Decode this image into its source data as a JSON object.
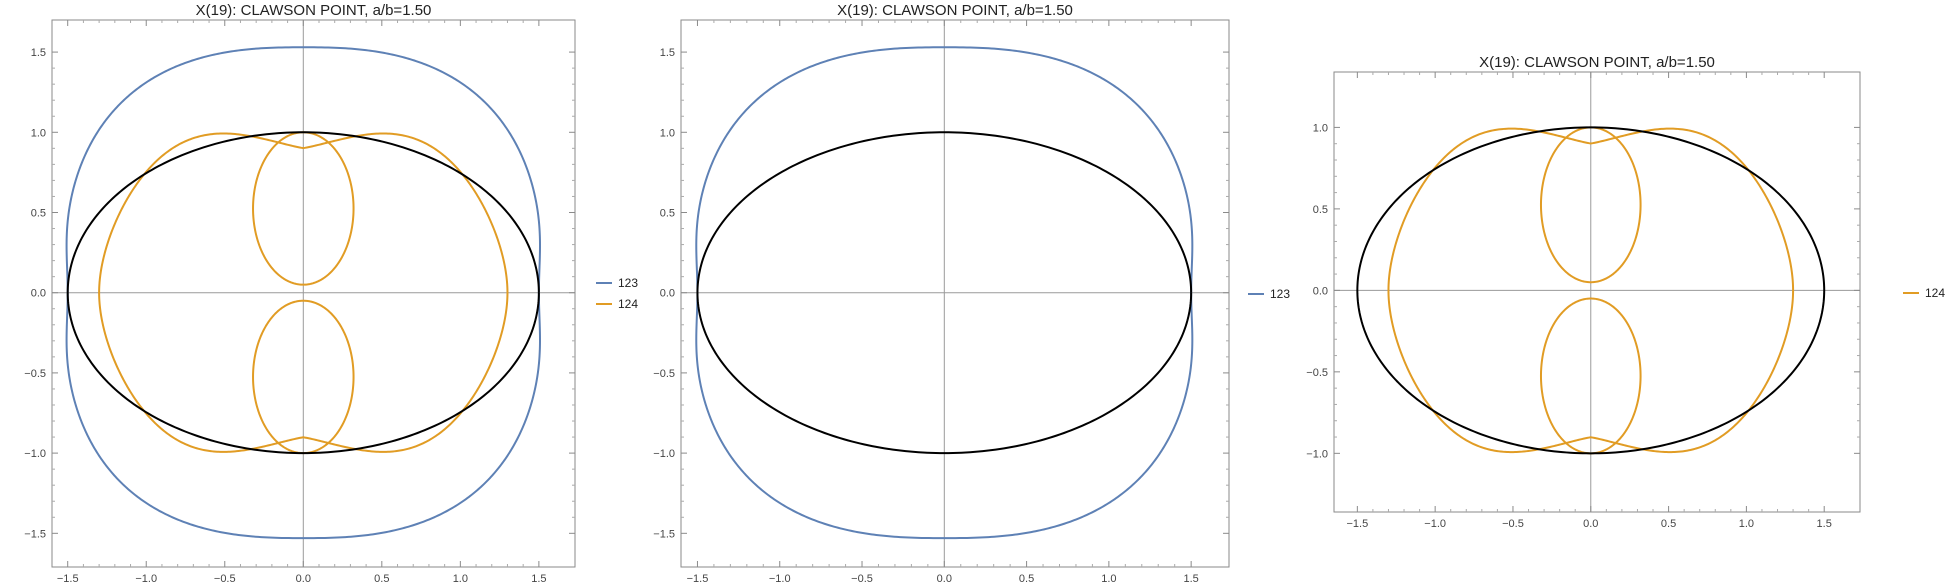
{
  "chart_data": [
    {
      "type": "line",
      "title": "X(19): CLAWSON POINT, a/b=1.50",
      "xlim": [
        -1.5,
        1.5
      ],
      "ylim": [
        -1.5,
        1.5
      ],
      "xticks": [
        "−1.5",
        "−1.0",
        "−0.5",
        "0.0",
        "0.5",
        "1.0",
        "1.5"
      ],
      "xtick_values": [
        -1.5,
        -1.0,
        -0.5,
        0.0,
        0.5,
        1.0,
        1.5
      ],
      "yticks": [
        "−1.5",
        "−1.0",
        "−0.5",
        "0.0",
        "0.5",
        "1.0",
        "1.5"
      ],
      "ytick_values": [
        -1.5,
        -1.0,
        -0.5,
        0.0,
        0.5,
        1.0,
        1.5
      ],
      "ellipse": {
        "a": 1.5,
        "b": 1.0,
        "color": "#000000"
      },
      "series": [
        {
          "name": "123",
          "color": "#5E81B5",
          "kind": "outer",
          "x_extent": 1.53,
          "y_extent": 1.53,
          "x_at_center": 1.5
        },
        {
          "name": "124",
          "color": "#E19C24",
          "kind": "inner",
          "x_extent": 1.3,
          "y_extent": 1.21,
          "lobe_y_range": [
            0.05,
            1.0
          ],
          "lobe_x_extent": 0.32
        }
      ],
      "legend_position": "right"
    },
    {
      "type": "line",
      "title": "X(19): CLAWSON POINT, a/b=1.50",
      "xlim": [
        -1.5,
        1.5
      ],
      "ylim": [
        -1.5,
        1.5
      ],
      "xticks": [
        "−1.5",
        "−1.0",
        "−0.5",
        "0.0",
        "0.5",
        "1.0",
        "1.5"
      ],
      "xtick_values": [
        -1.5,
        -1.0,
        -0.5,
        0.0,
        0.5,
        1.0,
        1.5
      ],
      "yticks": [
        "−1.5",
        "−1.0",
        "−0.5",
        "0.0",
        "0.5",
        "1.0",
        "1.5"
      ],
      "ytick_values": [
        -1.5,
        -1.0,
        -0.5,
        0.0,
        0.5,
        1.0,
        1.5
      ],
      "ellipse": {
        "a": 1.5,
        "b": 1.0,
        "color": "#000000"
      },
      "series": [
        {
          "name": "123",
          "color": "#5E81B5",
          "kind": "outer",
          "x_extent": 1.53,
          "y_extent": 1.53,
          "x_at_center": 1.5
        }
      ],
      "legend_position": "right"
    },
    {
      "type": "line",
      "title": "X(19): CLAWSON POINT, a/b=1.50",
      "xlim": [
        -1.5,
        1.5
      ],
      "ylim": [
        -1.0,
        1.0
      ],
      "xticks": [
        "−1.5",
        "−1.0",
        "−0.5",
        "0.0",
        "0.5",
        "1.0",
        "1.5"
      ],
      "xtick_values": [
        -1.5,
        -1.0,
        -0.5,
        0.0,
        0.5,
        1.0,
        1.5
      ],
      "yticks": [
        "−1.0",
        "−0.5",
        "0.0",
        "0.5",
        "1.0"
      ],
      "ytick_values": [
        -1.0,
        -0.5,
        0.0,
        0.5,
        1.0
      ],
      "ellipse": {
        "a": 1.5,
        "b": 1.0,
        "color": "#000000"
      },
      "series": [
        {
          "name": "124",
          "color": "#E19C24",
          "kind": "inner",
          "x_extent": 1.3,
          "y_extent": 1.21,
          "lobe_y_range": [
            0.05,
            1.0
          ],
          "lobe_x_extent": 0.32
        }
      ],
      "legend_position": "right"
    }
  ]
}
